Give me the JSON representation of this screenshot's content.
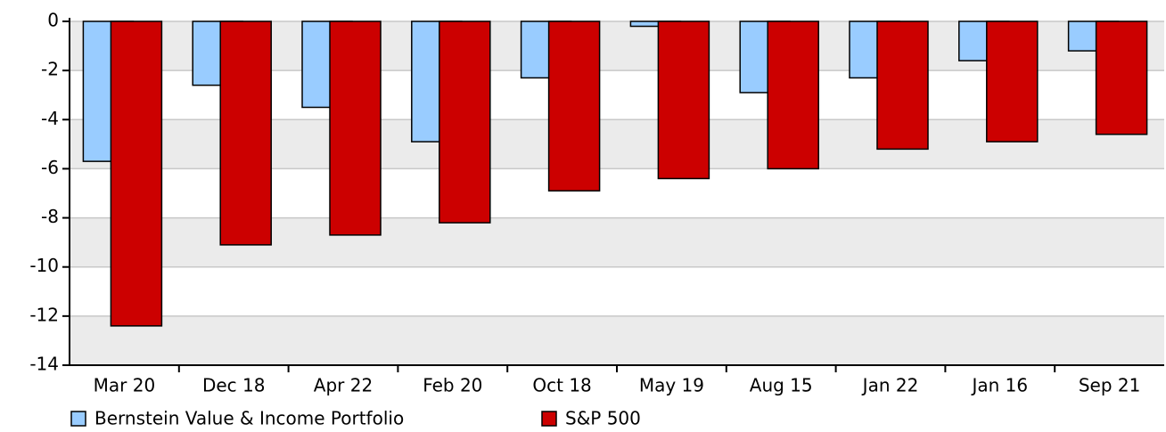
{
  "chart_data": {
    "type": "bar",
    "categories": [
      "Mar 20",
      "Dec 18",
      "Apr 22",
      "Feb 20",
      "Oct 18",
      "May 19",
      "Aug 15",
      "Jan 22",
      "Jan 16",
      "Sep 21"
    ],
    "series": [
      {
        "name": "Bernstein Value & Income Portfolio",
        "color": "#99ccff",
        "values": [
          -5.7,
          -2.6,
          -3.5,
          -4.9,
          -2.3,
          -0.2,
          -2.9,
          -2.3,
          -1.6,
          -1.2
        ]
      },
      {
        "name": "S&P 500",
        "color": "#cc0000",
        "values": [
          -12.4,
          -9.1,
          -8.7,
          -8.2,
          -6.9,
          -6.4,
          -6.0,
          -5.2,
          -4.9,
          -4.6
        ]
      }
    ],
    "ylim": [
      -14,
      0
    ],
    "yticks": [
      0,
      -2,
      -4,
      -6,
      -8,
      -10,
      -12,
      -14
    ],
    "grid": true
  }
}
